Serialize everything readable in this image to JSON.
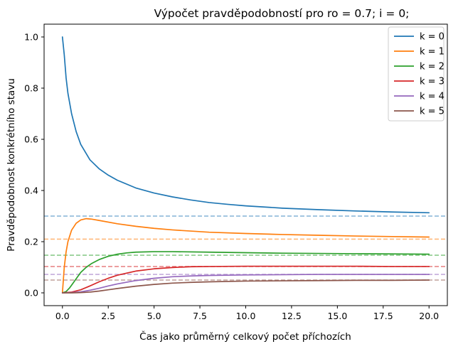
{
  "chart_data": {
    "type": "line",
    "title": "Výpočet pravděpodobností pro ro = 0.7; i = 0;",
    "xlabel": "Čas jako průměrný celkový počet příchozích",
    "ylabel": "Pravděpodobnost konkrétního stavu",
    "xlim": [
      -1.0,
      21.0
    ],
    "ylim": [
      -0.05,
      1.05
    ],
    "xticks": [
      0.0,
      2.5,
      5.0,
      7.5,
      10.0,
      12.5,
      15.0,
      17.5,
      20.0
    ],
    "xtick_labels": [
      "0.0",
      "2.5",
      "5.0",
      "7.5",
      "10.0",
      "12.5",
      "15.0",
      "17.5",
      "20.0"
    ],
    "yticks": [
      0.0,
      0.2,
      0.4,
      0.6,
      0.8,
      1.0
    ],
    "ytick_labels": [
      "0.0",
      "0.2",
      "0.4",
      "0.6",
      "0.8",
      "1.0"
    ],
    "grid": false,
    "legend_position": "top-right",
    "series": [
      {
        "name": "k = 0",
        "color": "#1f77b4",
        "steady_state": 0.3,
        "points": [
          [
            0.0,
            1.0
          ],
          [
            0.1,
            0.93
          ],
          [
            0.2,
            0.84
          ],
          [
            0.3,
            0.78
          ],
          [
            0.5,
            0.7
          ],
          [
            0.75,
            0.63
          ],
          [
            1.0,
            0.58
          ],
          [
            1.5,
            0.52
          ],
          [
            2.0,
            0.485
          ],
          [
            2.5,
            0.46
          ],
          [
            3.0,
            0.44
          ],
          [
            4.0,
            0.41
          ],
          [
            5.0,
            0.39
          ],
          [
            6.0,
            0.375
          ],
          [
            7.0,
            0.363
          ],
          [
            8.0,
            0.353
          ],
          [
            9.0,
            0.346
          ],
          [
            10.0,
            0.34
          ],
          [
            12.0,
            0.331
          ],
          [
            14.0,
            0.325
          ],
          [
            16.0,
            0.32
          ],
          [
            18.0,
            0.316
          ],
          [
            20.0,
            0.313
          ]
        ]
      },
      {
        "name": "k = 1",
        "color": "#ff7f0e",
        "steady_state": 0.21,
        "points": [
          [
            0.0,
            0.0
          ],
          [
            0.1,
            0.1
          ],
          [
            0.2,
            0.16
          ],
          [
            0.3,
            0.2
          ],
          [
            0.5,
            0.245
          ],
          [
            0.75,
            0.272
          ],
          [
            1.0,
            0.285
          ],
          [
            1.3,
            0.29
          ],
          [
            1.6,
            0.288
          ],
          [
            2.0,
            0.283
          ],
          [
            3.0,
            0.27
          ],
          [
            4.0,
            0.26
          ],
          [
            5.0,
            0.252
          ],
          [
            6.0,
            0.246
          ],
          [
            8.0,
            0.237
          ],
          [
            10.0,
            0.232
          ],
          [
            12.0,
            0.228
          ],
          [
            14.0,
            0.225
          ],
          [
            16.0,
            0.222
          ],
          [
            18.0,
            0.22
          ],
          [
            20.0,
            0.218
          ]
        ]
      },
      {
        "name": "k = 2",
        "color": "#2ca02c",
        "steady_state": 0.147,
        "points": [
          [
            0.0,
            0.0
          ],
          [
            0.2,
            0.005
          ],
          [
            0.4,
            0.02
          ],
          [
            0.6,
            0.04
          ],
          [
            0.8,
            0.06
          ],
          [
            1.0,
            0.08
          ],
          [
            1.3,
            0.1
          ],
          [
            1.6,
            0.115
          ],
          [
            2.0,
            0.13
          ],
          [
            2.5,
            0.143
          ],
          [
            3.0,
            0.151
          ],
          [
            3.5,
            0.156
          ],
          [
            4.0,
            0.159
          ],
          [
            5.0,
            0.161
          ],
          [
            6.0,
            0.161
          ],
          [
            8.0,
            0.159
          ],
          [
            10.0,
            0.157
          ],
          [
            12.0,
            0.155
          ],
          [
            14.0,
            0.154
          ],
          [
            16.0,
            0.153
          ],
          [
            18.0,
            0.152
          ],
          [
            20.0,
            0.151
          ]
        ]
      },
      {
        "name": "k = 3",
        "color": "#d62728",
        "steady_state": 0.103,
        "points": [
          [
            0.0,
            0.0
          ],
          [
            0.5,
            0.003
          ],
          [
            1.0,
            0.012
          ],
          [
            1.5,
            0.027
          ],
          [
            2.0,
            0.043
          ],
          [
            2.5,
            0.057
          ],
          [
            3.0,
            0.069
          ],
          [
            4.0,
            0.085
          ],
          [
            5.0,
            0.094
          ],
          [
            6.0,
            0.099
          ],
          [
            7.0,
            0.102
          ],
          [
            8.0,
            0.103
          ],
          [
            10.0,
            0.104
          ],
          [
            12.0,
            0.104
          ],
          [
            14.0,
            0.104
          ],
          [
            16.0,
            0.104
          ],
          [
            18.0,
            0.103
          ],
          [
            20.0,
            0.103
          ]
        ]
      },
      {
        "name": "k = 4",
        "color": "#9467bd",
        "steady_state": 0.072,
        "points": [
          [
            0.0,
            0.0
          ],
          [
            0.5,
            0.001
          ],
          [
            1.0,
            0.004
          ],
          [
            1.5,
            0.01
          ],
          [
            2.0,
            0.018
          ],
          [
            2.5,
            0.027
          ],
          [
            3.0,
            0.035
          ],
          [
            4.0,
            0.048
          ],
          [
            5.0,
            0.057
          ],
          [
            6.0,
            0.063
          ],
          [
            7.0,
            0.066
          ],
          [
            8.0,
            0.068
          ],
          [
            10.0,
            0.07
          ],
          [
            12.0,
            0.071
          ],
          [
            14.0,
            0.072
          ],
          [
            16.0,
            0.072
          ],
          [
            18.0,
            0.072
          ],
          [
            20.0,
            0.072
          ]
        ]
      },
      {
        "name": "k = 5",
        "color": "#8c564b",
        "steady_state": 0.05,
        "points": [
          [
            0.0,
            0.0
          ],
          [
            0.5,
            0.0
          ],
          [
            1.0,
            0.001
          ],
          [
            1.5,
            0.003
          ],
          [
            2.0,
            0.007
          ],
          [
            2.5,
            0.012
          ],
          [
            3.0,
            0.017
          ],
          [
            4.0,
            0.026
          ],
          [
            5.0,
            0.033
          ],
          [
            6.0,
            0.038
          ],
          [
            7.0,
            0.041
          ],
          [
            8.0,
            0.043
          ],
          [
            10.0,
            0.046
          ],
          [
            12.0,
            0.047
          ],
          [
            14.0,
            0.048
          ],
          [
            16.0,
            0.049
          ],
          [
            18.0,
            0.049
          ],
          [
            20.0,
            0.05
          ]
        ]
      }
    ]
  }
}
